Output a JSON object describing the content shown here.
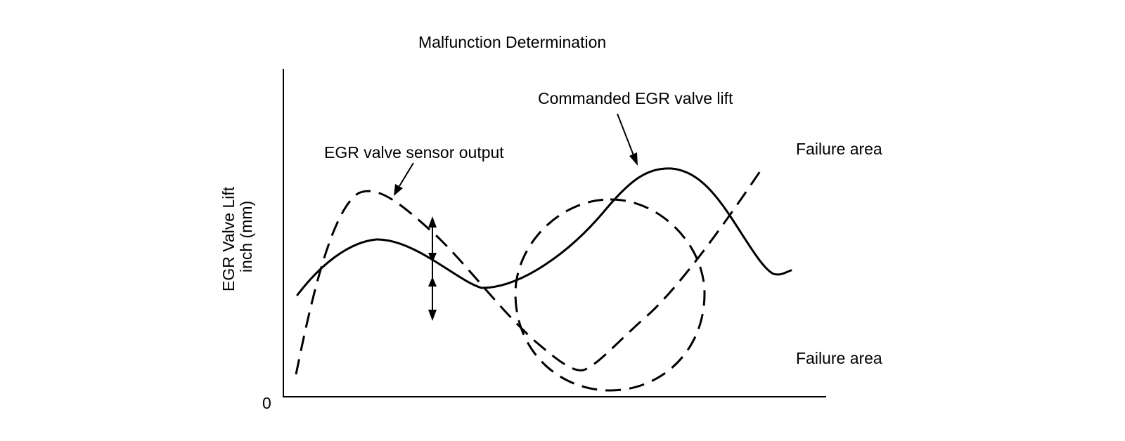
{
  "diagram": {
    "title": "Malfunction Determination",
    "y_axis_label_line1": "EGR Valve Lift",
    "y_axis_label_line2": "inch (mm)",
    "origin_label": "0",
    "commanded_label": "Commanded EGR valve lift",
    "sensor_label": "EGR valve sensor output",
    "failure_area_upper": "Failure area",
    "failure_area_lower": "Failure area"
  },
  "colors": {
    "ink": "#000000",
    "background": "#ffffff"
  }
}
